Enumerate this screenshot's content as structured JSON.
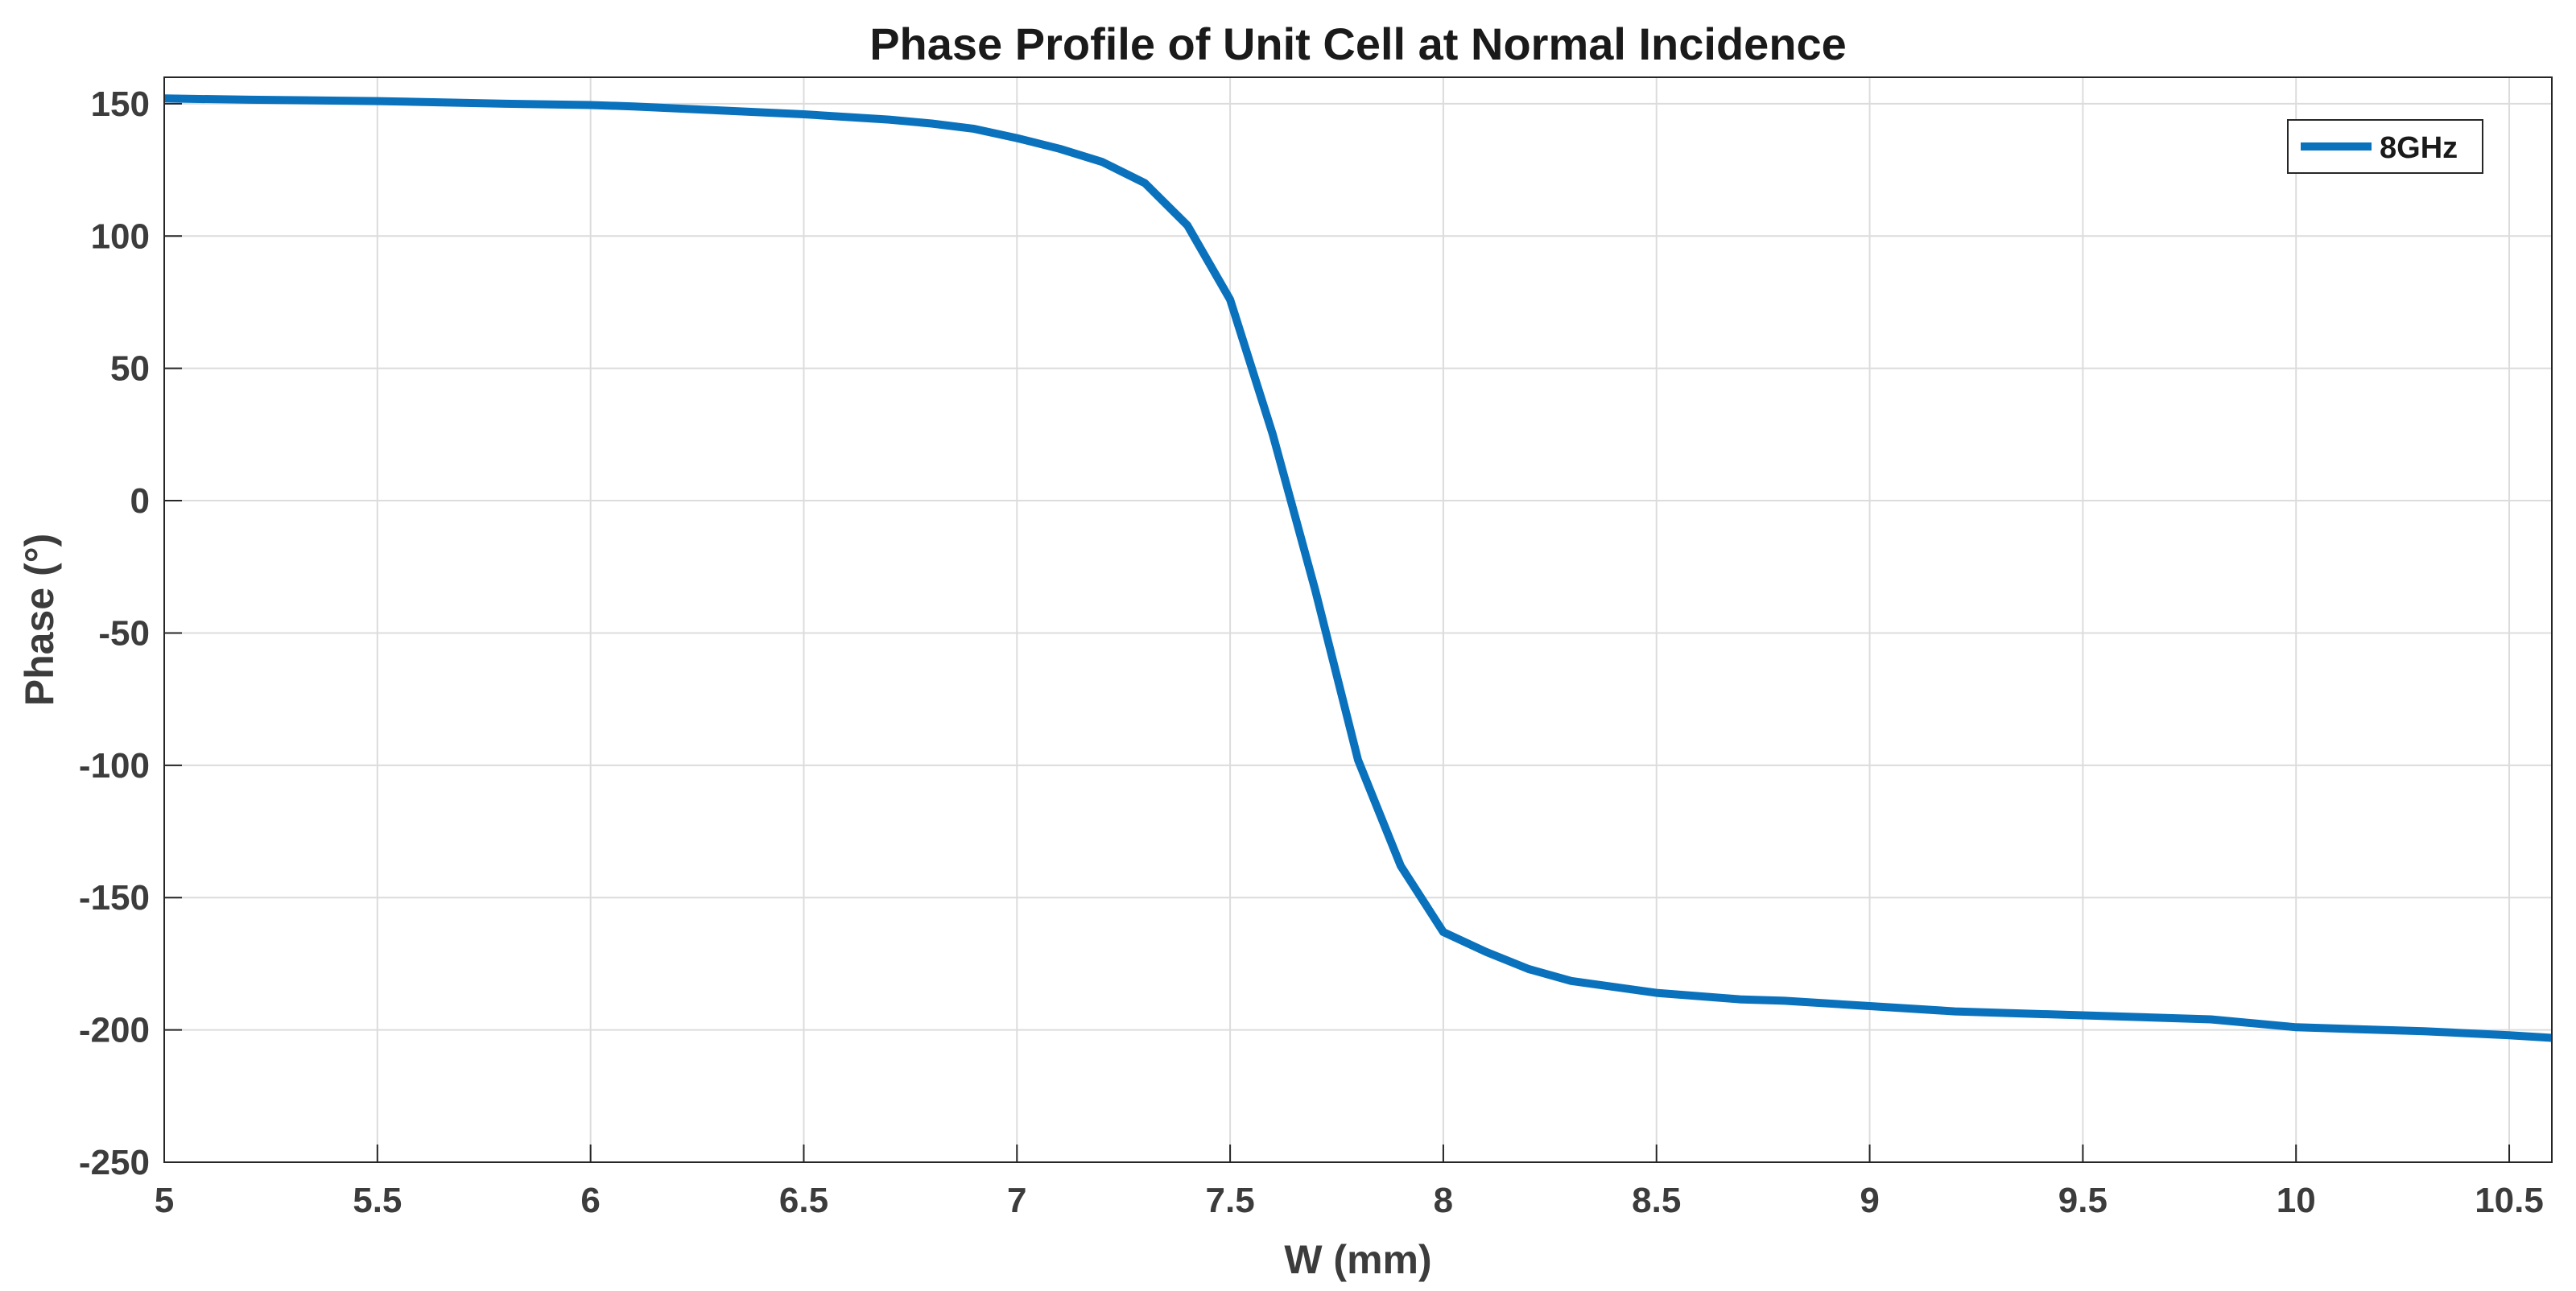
{
  "chart_data": {
    "type": "line",
    "title": "Phase Profile of Unit Cell at Normal Incidence",
    "xlabel": "W (mm)",
    "ylabel": "Phase (°)",
    "xlim": [
      5,
      10.6
    ],
    "ylim": [
      -250,
      160
    ],
    "xticks": [
      5,
      5.5,
      6,
      6.5,
      7,
      7.5,
      8,
      8.5,
      9,
      9.5,
      10,
      10.5
    ],
    "xtick_labels": [
      "5",
      "5.5",
      "6",
      "6.5",
      "7",
      "7.5",
      "8",
      "8.5",
      "9",
      "9.5",
      "10",
      "10.5"
    ],
    "yticks": [
      150,
      100,
      50,
      0,
      -50,
      -100,
      -150,
      -200,
      -250
    ],
    "ytick_labels": [
      "150",
      "100",
      "50",
      "0",
      "-50",
      "-100",
      "-150",
      "-200",
      "-250"
    ],
    "grid": true,
    "legend_position": "top-right",
    "series": [
      {
        "name": "8GHz",
        "color": "#0a72bd",
        "x": [
          5,
          5.2,
          5.5,
          5.8,
          6,
          6.1,
          6.3,
          6.5,
          6.7,
          6.8,
          6.9,
          7,
          7.1,
          7.2,
          7.3,
          7.4,
          7.5,
          7.6,
          7.7,
          7.8,
          7.9,
          8,
          8.1,
          8.2,
          8.3,
          8.5,
          8.7,
          8.8,
          9,
          9.2,
          9.5,
          9.8,
          10,
          10.3,
          10.5,
          10.6
        ],
        "values": [
          152,
          151.5,
          151,
          150,
          149.5,
          149,
          147.5,
          146,
          144,
          142.5,
          140.5,
          137,
          133,
          128,
          120,
          104,
          76,
          25,
          -34,
          -98,
          -138,
          -163,
          -170.5,
          -177,
          -181.5,
          -186,
          -188.5,
          -189,
          -191,
          -193,
          -194.5,
          -196,
          -199,
          -200.5,
          -202,
          -203
        ]
      }
    ]
  }
}
